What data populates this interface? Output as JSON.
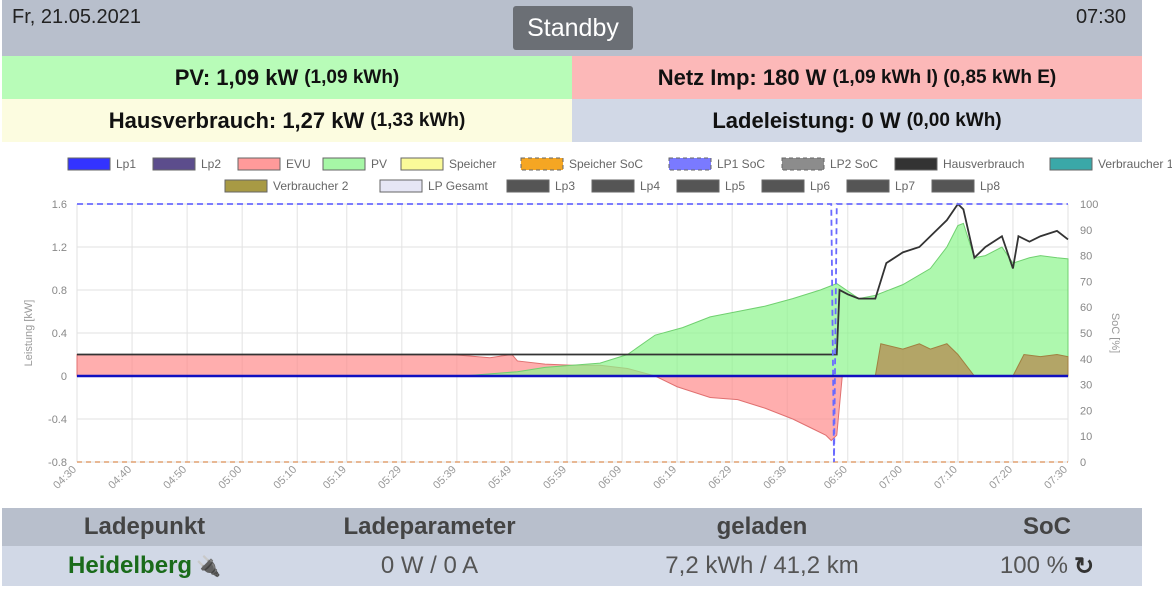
{
  "header": {
    "date": "Fr, 21.05.2021",
    "status": "Standby",
    "time": "07:30"
  },
  "tiles": {
    "pv": {
      "label": "PV: 1,09 kW",
      "sub": "(1,09 kWh)"
    },
    "netz": {
      "label": "Netz Imp: 180 W",
      "sub": "(1,09 kWh I) (0,85 kWh E)"
    },
    "haus": {
      "label": "Hausverbrauch: 1,27 kW",
      "sub": "(1,33 kWh)"
    },
    "lade": {
      "label": "Ladeleistung: 0 W",
      "sub": "(0,00 kWh)"
    }
  },
  "table": {
    "headers": [
      "Ladepunkt",
      "Ladeparameter",
      "geladen",
      "SoC"
    ],
    "row": {
      "ladepunkt": "Heidelberg",
      "ladeparameter": "0 W / 0 A",
      "geladen": "7,2 kWh / 41,2 km",
      "soc": "100 %"
    }
  },
  "chart_data": {
    "type": "area",
    "ylabel": "Leistung [kW]",
    "y2label": "SoC [%]",
    "ylim": [
      -0.8,
      1.6
    ],
    "y2lim": [
      0,
      100
    ],
    "yticks": [
      "1.6",
      "1.2",
      "0.8",
      "0.4",
      "0",
      "-0.4",
      "-0.8"
    ],
    "y2ticks": [
      "100",
      "90",
      "80",
      "70",
      "60",
      "50",
      "40",
      "30",
      "20",
      "10",
      "0"
    ],
    "xticks": [
      "04:30",
      "04:40",
      "04:50",
      "05:00",
      "05:10",
      "05:19",
      "05:29",
      "05:39",
      "05:49",
      "05:59",
      "06:09",
      "06:19",
      "06:29",
      "06:39",
      "06:50",
      "07:00",
      "07:10",
      "07:20",
      "07:30"
    ],
    "legend_row1": [
      "Lp1",
      "Lp2",
      "EVU",
      "PV",
      "Speicher",
      "Speicher SoC",
      "LP1 SoC",
      "LP2 SoC",
      "Hausverbrauch",
      "Verbraucher 1"
    ],
    "legend_row2": [
      "Verbraucher 2",
      "LP Gesamt",
      "Lp3",
      "Lp4",
      "Lp5",
      "Lp6",
      "Lp7",
      "Lp8"
    ],
    "legend_colors": {
      "Lp1": "#3333ff",
      "Lp2": "#5c4d8c",
      "EVU": "#ff9a9a",
      "PV": "#a6f7a6",
      "Speicher": "#fafa99",
      "Speicher SoC": "#f5a623",
      "LP1 SoC": "#7a7aff",
      "LP2 SoC": "#8c8c8c",
      "Hausverbrauch": "#333333",
      "Verbraucher 1": "#3aa8a8",
      "Verbraucher 2": "#a89a44",
      "LP Gesamt": "#e6e6f5",
      "Lp3": "#555555",
      "Lp4": "#555555",
      "Lp5": "#555555",
      "Lp6": "#555555",
      "Lp7": "#555555",
      "Lp8": "#555555"
    },
    "x_range": [
      "04:30",
      "07:30"
    ],
    "series": [
      {
        "name": "EVU",
        "x": [
          "04:30",
          "05:38",
          "05:45",
          "05:49",
          "05:50",
          "05:55",
          "06:00",
          "06:05",
          "06:10",
          "06:15",
          "06:19",
          "06:25",
          "06:30",
          "06:35",
          "06:40",
          "06:44",
          "06:46",
          "06:47",
          "06:48",
          "06:49"
        ],
        "values": [
          0.2,
          0.2,
          0.17,
          0.2,
          0.14,
          0.11,
          0.1,
          0.1,
          0.07,
          0.0,
          -0.1,
          -0.2,
          -0.22,
          -0.3,
          -0.4,
          -0.5,
          -0.55,
          -0.6,
          -0.55,
          0.0
        ]
      },
      {
        "name": "PV",
        "x": [
          "04:30",
          "05:40",
          "05:50",
          "05:55",
          "06:00",
          "06:05",
          "06:10",
          "06:15",
          "06:20",
          "06:25",
          "06:30",
          "06:35",
          "06:40",
          "06:45",
          "06:48",
          "06:52",
          "06:55",
          "07:00",
          "07:05",
          "07:08",
          "07:10",
          "07:11",
          "07:13",
          "07:15",
          "07:18",
          "07:20",
          "07:23",
          "07:25",
          "07:28",
          "07:30"
        ],
        "values": [
          0.0,
          0.0,
          0.04,
          0.08,
          0.1,
          0.12,
          0.2,
          0.38,
          0.45,
          0.55,
          0.6,
          0.65,
          0.72,
          0.8,
          0.86,
          0.72,
          0.75,
          0.85,
          1.0,
          1.2,
          1.4,
          1.42,
          1.1,
          1.12,
          1.2,
          1.05,
          1.1,
          1.12,
          1.1,
          1.09
        ]
      },
      {
        "name": "Hausverbrauch",
        "x": [
          "04:30",
          "06:48",
          "06:48.5",
          "06:50",
          "06:52",
          "06:55",
          "06:57",
          "07:00",
          "07:03",
          "07:05",
          "07:08",
          "07:10",
          "07:11",
          "07:13",
          "07:15",
          "07:18",
          "07:20",
          "07:21",
          "07:23",
          "07:25",
          "07:28",
          "07:30"
        ],
        "values": [
          0.2,
          0.2,
          0.8,
          0.76,
          0.72,
          0.72,
          1.05,
          1.15,
          1.2,
          1.3,
          1.45,
          1.6,
          1.55,
          1.1,
          1.2,
          1.3,
          1.0,
          1.3,
          1.25,
          1.3,
          1.35,
          1.27
        ]
      },
      {
        "name": "Verbraucher 2",
        "x": [
          "04:30",
          "06:55",
          "06:56",
          "07:00",
          "07:03",
          "07:05",
          "07:08",
          "07:10",
          "07:13",
          "07:15",
          "07:20",
          "07:22",
          "07:25",
          "07:28",
          "07:30"
        ],
        "values": [
          0.0,
          0.0,
          0.3,
          0.25,
          0.3,
          0.25,
          0.3,
          0.2,
          0.0,
          0.0,
          0.0,
          0.2,
          0.18,
          0.2,
          0.18
        ]
      },
      {
        "name": "LP1 SoC",
        "x": [
          "04:30",
          "06:47",
          "06:47.5",
          "06:48",
          "06:49",
          "06:49.5",
          "07:30"
        ],
        "values": [
          100,
          100,
          0,
          100,
          100,
          100,
          100
        ]
      },
      {
        "name": "Lp1",
        "x": [
          "04:30",
          "07:30"
        ],
        "values": [
          0,
          0
        ]
      }
    ]
  }
}
